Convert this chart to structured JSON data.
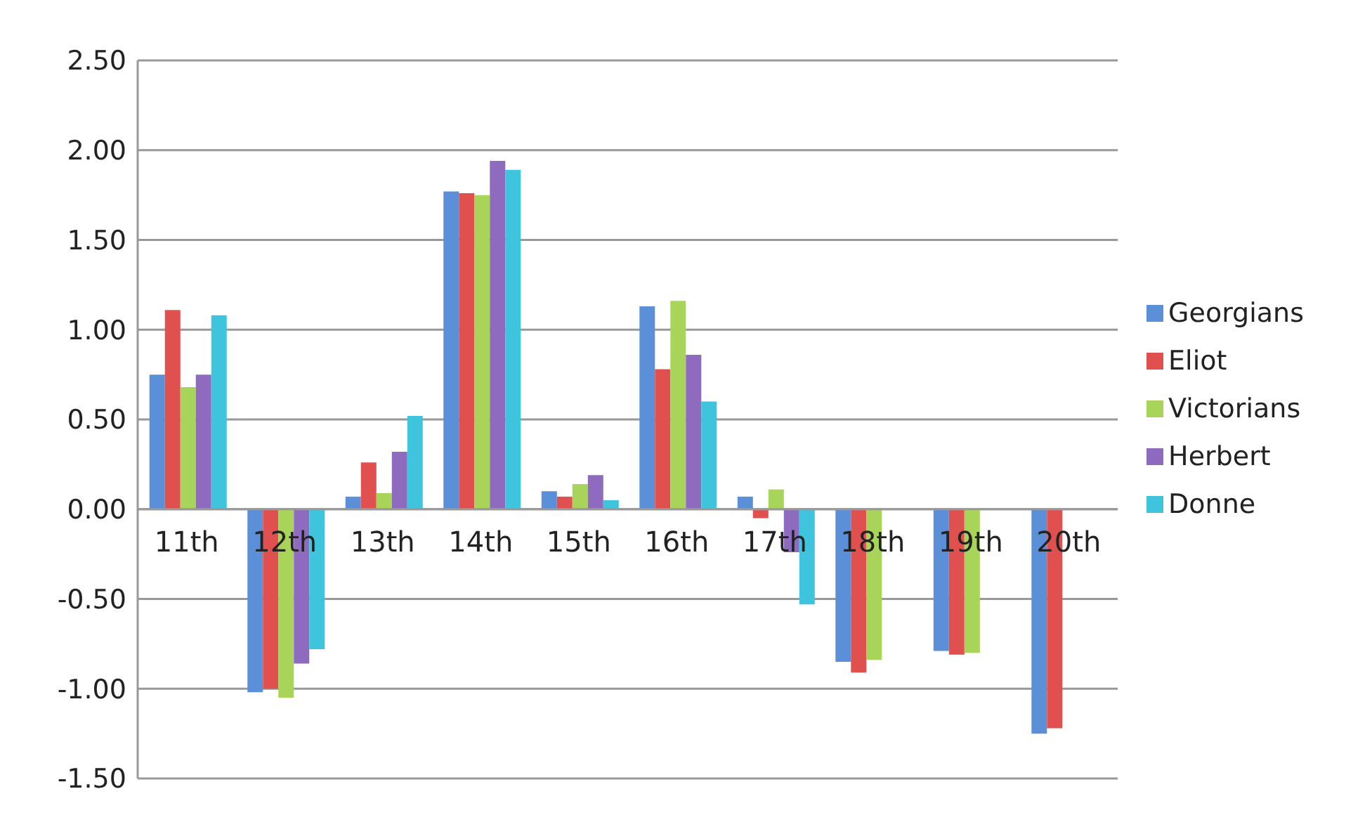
{
  "chart_data": {
    "type": "bar",
    "categories": [
      "11th",
      "12th",
      "13th",
      "14th",
      "15th",
      "16th",
      "17th",
      "18th",
      "19th",
      "20th"
    ],
    "series": [
      {
        "name": "Georgians",
        "color": "#5b8fd8",
        "values": [
          0.75,
          -1.02,
          0.07,
          1.77,
          0.1,
          1.13,
          0.07,
          -0.85,
          -0.79,
          -1.25
        ]
      },
      {
        "name": "Eliot",
        "color": "#e0504f",
        "values": [
          1.11,
          -1.0,
          0.26,
          1.76,
          0.07,
          0.78,
          -0.05,
          -0.91,
          -0.81,
          -1.22
        ]
      },
      {
        "name": "Victorians",
        "color": "#a8d45a",
        "values": [
          0.68,
          -1.05,
          0.09,
          1.75,
          0.14,
          1.16,
          0.11,
          -0.84,
          -0.8,
          null
        ]
      },
      {
        "name": "Herbert",
        "color": "#8e6bbf",
        "values": [
          0.75,
          -0.86,
          0.32,
          1.94,
          0.19,
          0.86,
          -0.24,
          null,
          null,
          null
        ]
      },
      {
        "name": "Donne",
        "color": "#3fc4de",
        "values": [
          1.08,
          -0.78,
          0.52,
          1.89,
          0.05,
          0.6,
          -0.53,
          null,
          null,
          null
        ]
      }
    ],
    "ylim": [
      -1.5,
      2.5
    ],
    "yticks": [
      {
        "value": -1.5,
        "label": "-1.50"
      },
      {
        "value": -1,
        "label": "-1.00"
      },
      {
        "value": -0.5,
        "label": "-0.50"
      },
      {
        "value": 0,
        "label": "0.00"
      },
      {
        "value": 0.5,
        "label": "0.50"
      },
      {
        "value": 1,
        "label": "1.00"
      },
      {
        "value": 1.5,
        "label": "1.50"
      },
      {
        "value": 2,
        "label": "2.00"
      },
      {
        "value": 2.5,
        "label": "2.50"
      }
    ],
    "grid": "y",
    "legend": "right"
  }
}
